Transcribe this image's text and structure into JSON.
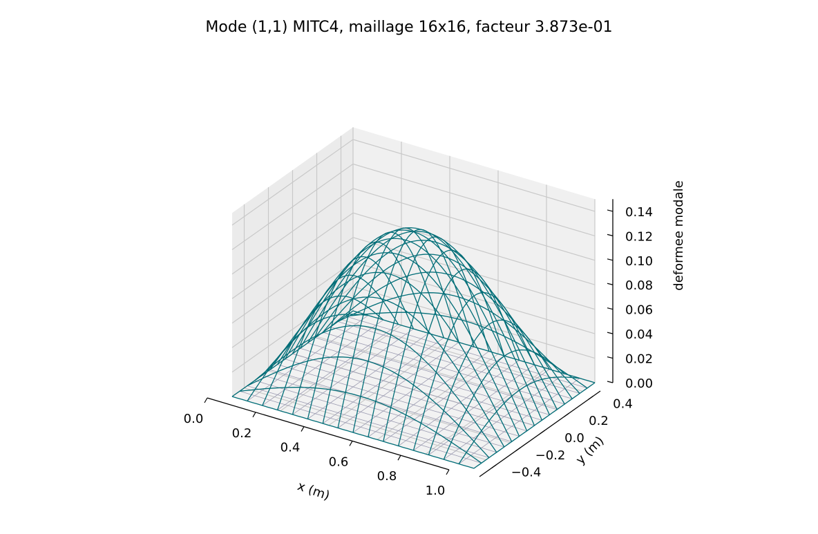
{
  "chart_data": {
    "type": "surface-wireframe",
    "title": "Mode (1,1) MITC4, maillage 16x16, facteur 3.873e-01",
    "xlabel": "x (m)",
    "ylabel": "y (m)",
    "zlabel": "deformee modale",
    "xlim": [
      0.0,
      1.0
    ],
    "ylim": [
      -0.5,
      0.5
    ],
    "zlim": [
      0.0,
      0.15
    ],
    "x_ticks": [
      "0.0",
      "0.2",
      "0.4",
      "0.6",
      "0.8",
      "1.0"
    ],
    "y_ticks": [
      "−0.4",
      "−0.2",
      "0.0",
      "0.2",
      "0.4"
    ],
    "z_ticks": [
      "0.00",
      "0.02",
      "0.04",
      "0.06",
      "0.08",
      "0.10",
      "0.12",
      "0.14"
    ],
    "mesh": [
      16,
      16
    ],
    "mode": [
      1,
      1
    ],
    "amplitude": 0.129,
    "surface_function": "amplitude * sin(pi*x) * sin(pi*(y+0.5))",
    "colors": {
      "deformed": "#006d77",
      "reference": "#9a9ab0",
      "pane": "#f2f2f2",
      "grid": "#c8c8c8"
    }
  }
}
